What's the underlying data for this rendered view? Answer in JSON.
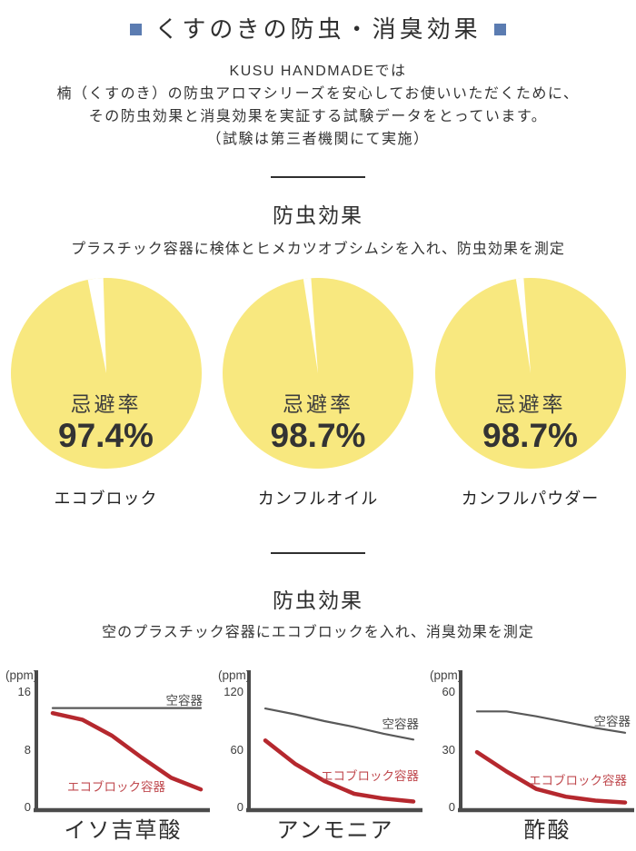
{
  "header": {
    "title": "くすのきの防虫・消臭効果"
  },
  "intro": {
    "lines": [
      "KUSU HANDMADEでは",
      "楠（くすのき）の防虫アロマシリーズを安心してお使いいただくために、",
      "その防虫効果と消臭効果を実証する試験データをとっています。",
      "（試験は第三者機関にて実施）"
    ]
  },
  "sections": {
    "repellent": {
      "heading": "防虫効果",
      "subtitle": "プラスチック容器に検体とヒメカツオブシムシを入れ、防虫効果を測定"
    },
    "deodorant": {
      "heading": "防虫効果",
      "subtitle": "空のプラスチック容器にエコブロックを入れ、消臭効果を測定"
    }
  },
  "chart_data": [
    {
      "type": "pie",
      "label": "エコブロック",
      "center_text": "忌避率",
      "value_pct": 97.4,
      "display": "97.4%",
      "slices": [
        {
          "name": "忌避",
          "value": 97.4
        },
        {
          "name": "非忌避",
          "value": 2.6
        }
      ]
    },
    {
      "type": "pie",
      "label": "カンフルオイル",
      "center_text": "忌避率",
      "value_pct": 98.7,
      "display": "98.7%",
      "slices": [
        {
          "name": "忌避",
          "value": 98.7
        },
        {
          "name": "非忌避",
          "value": 1.3
        }
      ]
    },
    {
      "type": "pie",
      "label": "カンフルパウダー",
      "center_text": "忌避率",
      "value_pct": 98.7,
      "display": "98.7%",
      "slices": [
        {
          "name": "忌避",
          "value": 98.7
        },
        {
          "name": "非忌避",
          "value": 1.3
        }
      ]
    },
    {
      "type": "line",
      "title": "イソ吉草酸",
      "unit": "(ppm)",
      "ylim": [
        0,
        16
      ],
      "yticks": [
        16,
        8,
        0
      ],
      "grid": false,
      "series": [
        {
          "name": "空容器",
          "color": "#595959",
          "values": [
            13.8,
            13.8,
            13.8,
            13.8,
            13.8,
            13.8
          ]
        },
        {
          "name": "エコブロック容器",
          "color": "#b5282e",
          "values": [
            13.1,
            12.2,
            10,
            7,
            4.2,
            2.6
          ]
        }
      ]
    },
    {
      "type": "line",
      "title": "アンモニア",
      "unit": "(ppm)",
      "ylim": [
        0,
        120
      ],
      "yticks": [
        120,
        60,
        0
      ],
      "grid": false,
      "series": [
        {
          "name": "空容器",
          "color": "#595959",
          "values": [
            103,
            97,
            90,
            84,
            77,
            71
          ]
        },
        {
          "name": "エコブロック容器",
          "color": "#b5282e",
          "values": [
            70,
            46,
            28,
            15,
            10,
            7
          ]
        }
      ]
    },
    {
      "type": "line",
      "title": "酢酸",
      "unit": "(ppm)",
      "ylim": [
        0,
        60
      ],
      "yticks": [
        60,
        30,
        0
      ],
      "grid": false,
      "series": [
        {
          "name": "空容器",
          "color": "#595959",
          "values": [
            50,
            50,
            47.5,
            44.5,
            41.5,
            39
          ]
        },
        {
          "name": "エコブロック容器",
          "color": "#b5282e",
          "values": [
            29,
            19,
            10,
            6,
            4,
            3
          ]
        }
      ]
    }
  ],
  "colors": {
    "accent_blue": "#5b7cb1",
    "pie_yellow": "#f8e87f",
    "line_red": "#b5282e",
    "line_gray": "#595959",
    "eco_label_red": "#c04a4f",
    "empty_label_gray": "#4a4a4a",
    "axis": "#4b4b4b"
  }
}
